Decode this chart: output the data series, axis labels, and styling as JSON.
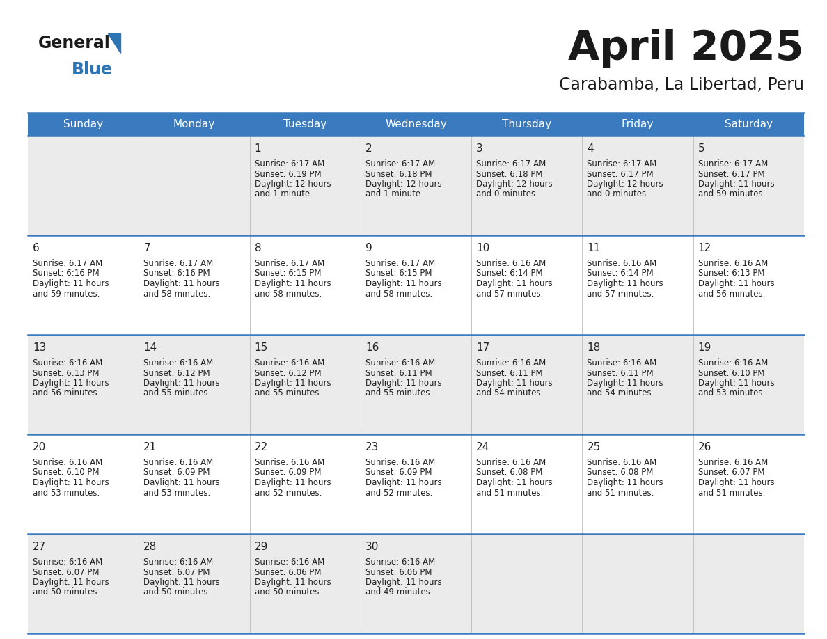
{
  "title": "April 2025",
  "subtitle": "Carabamba, La Libertad, Peru",
  "header_bg_color": "#3a7abf",
  "header_text_color": "#ffffff",
  "day_names": [
    "Sunday",
    "Monday",
    "Tuesday",
    "Wednesday",
    "Thursday",
    "Friday",
    "Saturday"
  ],
  "row_colors": [
    "#ebebeb",
    "#ffffff"
  ],
  "cell_border_color": "#3a7abf",
  "text_color": "#222222",
  "title_color": "#1a1a1a",
  "subtitle_color": "#1a1a1a",
  "logo_general_color": "#1a1a1a",
  "logo_blue_color": "#2e75b6",
  "days_data": [
    {
      "day": 1,
      "col": 2,
      "row": 0,
      "sunrise": "6:17 AM",
      "sunset": "6:19 PM",
      "daylight": "12 hours",
      "daylight2": "and 1 minute."
    },
    {
      "day": 2,
      "col": 3,
      "row": 0,
      "sunrise": "6:17 AM",
      "sunset": "6:18 PM",
      "daylight": "12 hours",
      "daylight2": "and 1 minute."
    },
    {
      "day": 3,
      "col": 4,
      "row": 0,
      "sunrise": "6:17 AM",
      "sunset": "6:18 PM",
      "daylight": "12 hours",
      "daylight2": "and 0 minutes."
    },
    {
      "day": 4,
      "col": 5,
      "row": 0,
      "sunrise": "6:17 AM",
      "sunset": "6:17 PM",
      "daylight": "12 hours",
      "daylight2": "and 0 minutes."
    },
    {
      "day": 5,
      "col": 6,
      "row": 0,
      "sunrise": "6:17 AM",
      "sunset": "6:17 PM",
      "daylight": "11 hours",
      "daylight2": "and 59 minutes."
    },
    {
      "day": 6,
      "col": 0,
      "row": 1,
      "sunrise": "6:17 AM",
      "sunset": "6:16 PM",
      "daylight": "11 hours",
      "daylight2": "and 59 minutes."
    },
    {
      "day": 7,
      "col": 1,
      "row": 1,
      "sunrise": "6:17 AM",
      "sunset": "6:16 PM",
      "daylight": "11 hours",
      "daylight2": "and 58 minutes."
    },
    {
      "day": 8,
      "col": 2,
      "row": 1,
      "sunrise": "6:17 AM",
      "sunset": "6:15 PM",
      "daylight": "11 hours",
      "daylight2": "and 58 minutes."
    },
    {
      "day": 9,
      "col": 3,
      "row": 1,
      "sunrise": "6:17 AM",
      "sunset": "6:15 PM",
      "daylight": "11 hours",
      "daylight2": "and 58 minutes."
    },
    {
      "day": 10,
      "col": 4,
      "row": 1,
      "sunrise": "6:16 AM",
      "sunset": "6:14 PM",
      "daylight": "11 hours",
      "daylight2": "and 57 minutes."
    },
    {
      "day": 11,
      "col": 5,
      "row": 1,
      "sunrise": "6:16 AM",
      "sunset": "6:14 PM",
      "daylight": "11 hours",
      "daylight2": "and 57 minutes."
    },
    {
      "day": 12,
      "col": 6,
      "row": 1,
      "sunrise": "6:16 AM",
      "sunset": "6:13 PM",
      "daylight": "11 hours",
      "daylight2": "and 56 minutes."
    },
    {
      "day": 13,
      "col": 0,
      "row": 2,
      "sunrise": "6:16 AM",
      "sunset": "6:13 PM",
      "daylight": "11 hours",
      "daylight2": "and 56 minutes."
    },
    {
      "day": 14,
      "col": 1,
      "row": 2,
      "sunrise": "6:16 AM",
      "sunset": "6:12 PM",
      "daylight": "11 hours",
      "daylight2": "and 55 minutes."
    },
    {
      "day": 15,
      "col": 2,
      "row": 2,
      "sunrise": "6:16 AM",
      "sunset": "6:12 PM",
      "daylight": "11 hours",
      "daylight2": "and 55 minutes."
    },
    {
      "day": 16,
      "col": 3,
      "row": 2,
      "sunrise": "6:16 AM",
      "sunset": "6:11 PM",
      "daylight": "11 hours",
      "daylight2": "and 55 minutes."
    },
    {
      "day": 17,
      "col": 4,
      "row": 2,
      "sunrise": "6:16 AM",
      "sunset": "6:11 PM",
      "daylight": "11 hours",
      "daylight2": "and 54 minutes."
    },
    {
      "day": 18,
      "col": 5,
      "row": 2,
      "sunrise": "6:16 AM",
      "sunset": "6:11 PM",
      "daylight": "11 hours",
      "daylight2": "and 54 minutes."
    },
    {
      "day": 19,
      "col": 6,
      "row": 2,
      "sunrise": "6:16 AM",
      "sunset": "6:10 PM",
      "daylight": "11 hours",
      "daylight2": "and 53 minutes."
    },
    {
      "day": 20,
      "col": 0,
      "row": 3,
      "sunrise": "6:16 AM",
      "sunset": "6:10 PM",
      "daylight": "11 hours",
      "daylight2": "and 53 minutes."
    },
    {
      "day": 21,
      "col": 1,
      "row": 3,
      "sunrise": "6:16 AM",
      "sunset": "6:09 PM",
      "daylight": "11 hours",
      "daylight2": "and 53 minutes."
    },
    {
      "day": 22,
      "col": 2,
      "row": 3,
      "sunrise": "6:16 AM",
      "sunset": "6:09 PM",
      "daylight": "11 hours",
      "daylight2": "and 52 minutes."
    },
    {
      "day": 23,
      "col": 3,
      "row": 3,
      "sunrise": "6:16 AM",
      "sunset": "6:09 PM",
      "daylight": "11 hours",
      "daylight2": "and 52 minutes."
    },
    {
      "day": 24,
      "col": 4,
      "row": 3,
      "sunrise": "6:16 AM",
      "sunset": "6:08 PM",
      "daylight": "11 hours",
      "daylight2": "and 51 minutes."
    },
    {
      "day": 25,
      "col": 5,
      "row": 3,
      "sunrise": "6:16 AM",
      "sunset": "6:08 PM",
      "daylight": "11 hours",
      "daylight2": "and 51 minutes."
    },
    {
      "day": 26,
      "col": 6,
      "row": 3,
      "sunrise": "6:16 AM",
      "sunset": "6:07 PM",
      "daylight": "11 hours",
      "daylight2": "and 51 minutes."
    },
    {
      "day": 27,
      "col": 0,
      "row": 4,
      "sunrise": "6:16 AM",
      "sunset": "6:07 PM",
      "daylight": "11 hours",
      "daylight2": "and 50 minutes."
    },
    {
      "day": 28,
      "col": 1,
      "row": 4,
      "sunrise": "6:16 AM",
      "sunset": "6:07 PM",
      "daylight": "11 hours",
      "daylight2": "and 50 minutes."
    },
    {
      "day": 29,
      "col": 2,
      "row": 4,
      "sunrise": "6:16 AM",
      "sunset": "6:06 PM",
      "daylight": "11 hours",
      "daylight2": "and 50 minutes."
    },
    {
      "day": 30,
      "col": 3,
      "row": 4,
      "sunrise": "6:16 AM",
      "sunset": "6:06 PM",
      "daylight": "11 hours",
      "daylight2": "and 49 minutes."
    }
  ]
}
